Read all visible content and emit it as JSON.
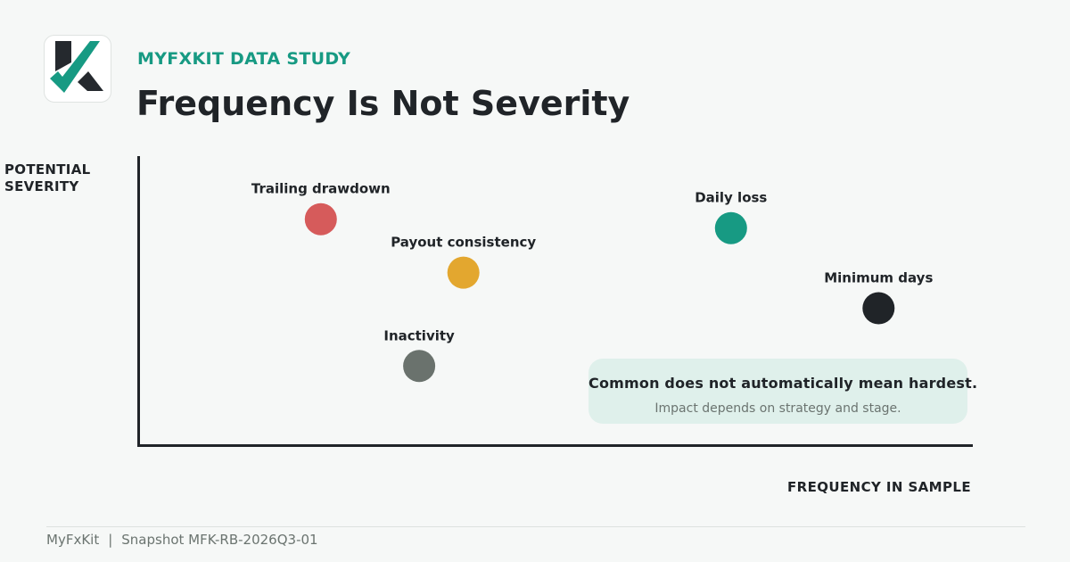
{
  "header": {
    "eyebrow": "MYFXKIT DATA STUDY",
    "title": "Frequency Is Not Severity"
  },
  "colors": {
    "accent": "#179a83",
    "dark": "#202428",
    "red": "#d65b5b",
    "amber": "#e3a72f",
    "teal": "#179a83",
    "gray": "#6a726d",
    "callout_bg": "#dff0eb"
  },
  "logo": {
    "icon": "myfxkit-logo-icon"
  },
  "chart_data": {
    "type": "scatter",
    "title": "Frequency Is Not Severity",
    "xlabel": "FREQUENCY IN SAMPLE",
    "ylabel": "POTENTIAL SEVERITY",
    "xlim": [
      0,
      1
    ],
    "ylim": [
      0,
      1
    ],
    "grid": false,
    "axis_ticks": false,
    "points": [
      {
        "label": "Trailing drawdown",
        "x": 0.219,
        "y": 0.785,
        "color": "#d65b5b"
      },
      {
        "label": "Payout consistency",
        "x": 0.39,
        "y": 0.6,
        "color": "#e3a72f"
      },
      {
        "label": "Daily loss",
        "x": 0.711,
        "y": 0.754,
        "color": "#179a83"
      },
      {
        "label": "Minimum days",
        "x": 0.888,
        "y": 0.477,
        "color": "#202428"
      },
      {
        "label": "Inactivity",
        "x": 0.337,
        "y": 0.277,
        "color": "#6a726d"
      }
    ]
  },
  "callout": {
    "headline": "Common does not automatically mean hardest.",
    "subtext": "Impact depends on strategy and stage."
  },
  "footer": {
    "brand": "MyFxKit",
    "separator": "|",
    "snapshot": "Snapshot MFK-RB-2026Q3-01"
  }
}
